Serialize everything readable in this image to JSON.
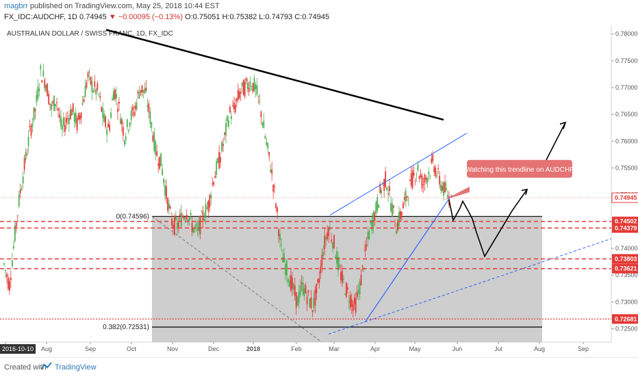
{
  "header": {
    "publisher": "magbrr",
    "published_text": "published on TradingView.com, May 25, 2018 10:44 EST",
    "symbol": "FX_IDC:AUDCHF, 1D",
    "last": "0.74945",
    "change": "−0.00095 (−0.13%)",
    "ohlc": "O:0.75051 H:0.75382 L:0.74793 C:0.74945"
  },
  "footer": {
    "created_with": "Created with",
    "brand": "TradingView"
  },
  "colors": {
    "up": "#4caf50",
    "down": "#e53935",
    "hline": "#e53935",
    "trend": "#000000",
    "blue": "#2962ff",
    "box": "#bdbdbd",
    "callout": "#e57373"
  },
  "chart_data": {
    "type": "candlestick",
    "title": "AUSTRALIAN DOLLAR / SWISS FRANC, 1D, FX_IDC",
    "y_ticks": [
      "0.78000",
      "0.77500",
      "0.77000",
      "0.76500",
      "0.76000",
      "0.75500",
      "0.75000",
      "0.74500",
      "0.74000",
      "0.73500",
      "0.73000",
      "0.72500"
    ],
    "ylim": [
      0.7225,
      0.7815
    ],
    "x_ticks": [
      "2016-10-10",
      "Aug",
      "Sep",
      "Oct",
      "Nov",
      "Dec",
      "2018",
      "Feb",
      "Mar",
      "Apr",
      "May",
      "Jun",
      "Jul",
      "Aug",
      "Sep"
    ],
    "price_labels": [
      {
        "label": "0.74945",
        "value": 0.74945
      },
      {
        "label": "0.74502",
        "value": 0.74502
      },
      {
        "label": "0.74379",
        "value": 0.74379
      },
      {
        "label": "0.73803",
        "value": 0.73803
      },
      {
        "label": "0.73621",
        "value": 0.73621
      },
      {
        "label": "0.72681",
        "value": 0.72681
      }
    ],
    "fib_labels": [
      {
        "label": "0(0.74596)",
        "value": 0.74596
      },
      {
        "label": "0.382(0.72531)",
        "value": 0.72531
      }
    ],
    "annotation": "Watching this trendline on AUDCHF",
    "price_path": [
      [
        0,
        0.737
      ],
      [
        1,
        0.733
      ],
      [
        2,
        0.742
      ],
      [
        3,
        0.75
      ],
      [
        4,
        0.756
      ],
      [
        5,
        0.762
      ],
      [
        6,
        0.766
      ],
      [
        7,
        0.773
      ],
      [
        8,
        0.771
      ],
      [
        9,
        0.766
      ],
      [
        10,
        0.768
      ],
      [
        11,
        0.762
      ],
      [
        12,
        0.764
      ],
      [
        13,
        0.766
      ],
      [
        14,
        0.763
      ],
      [
        15,
        0.767
      ],
      [
        16,
        0.772
      ],
      [
        17,
        0.77
      ],
      [
        18,
        0.769
      ],
      [
        19,
        0.764
      ],
      [
        20,
        0.762
      ],
      [
        21,
        0.77
      ],
      [
        22,
        0.766
      ],
      [
        23,
        0.761
      ],
      [
        24,
        0.764
      ],
      [
        25,
        0.766
      ],
      [
        26,
        0.77
      ],
      [
        27,
        0.769
      ],
      [
        28,
        0.764
      ],
      [
        29,
        0.758
      ],
      [
        30,
        0.756
      ],
      [
        31,
        0.75
      ],
      [
        32,
        0.745
      ],
      [
        33,
        0.744
      ],
      [
        34,
        0.746
      ],
      [
        35,
        0.747
      ],
      [
        36,
        0.744
      ],
      [
        37,
        0.743
      ],
      [
        38,
        0.746
      ],
      [
        39,
        0.748
      ],
      [
        40,
        0.753
      ],
      [
        41,
        0.756
      ],
      [
        42,
        0.76
      ],
      [
        43,
        0.765
      ],
      [
        44,
        0.766
      ],
      [
        45,
        0.769
      ],
      [
        46,
        0.77
      ],
      [
        47,
        0.771
      ],
      [
        48,
        0.77
      ],
      [
        49,
        0.766
      ],
      [
        50,
        0.76
      ],
      [
        51,
        0.755
      ],
      [
        52,
        0.748
      ],
      [
        53,
        0.739
      ],
      [
        54,
        0.736
      ],
      [
        55,
        0.733
      ],
      [
        56,
        0.73
      ],
      [
        57,
        0.733
      ],
      [
        58,
        0.731
      ],
      [
        59,
        0.729
      ],
      [
        60,
        0.733
      ],
      [
        61,
        0.74
      ],
      [
        62,
        0.744
      ],
      [
        63,
        0.741
      ],
      [
        64,
        0.736
      ],
      [
        65,
        0.733
      ],
      [
        66,
        0.731
      ],
      [
        67,
        0.729
      ],
      [
        68,
        0.733
      ],
      [
        69,
        0.739
      ],
      [
        70,
        0.744
      ],
      [
        71,
        0.747
      ],
      [
        72,
        0.751
      ],
      [
        73,
        0.753
      ],
      [
        74,
        0.748
      ],
      [
        75,
        0.744
      ],
      [
        76,
        0.747
      ],
      [
        77,
        0.75
      ],
      [
        78,
        0.753
      ],
      [
        79,
        0.755
      ],
      [
        80,
        0.752
      ],
      [
        81,
        0.754
      ],
      [
        82,
        0.756
      ],
      [
        83,
        0.753
      ],
      [
        84,
        0.751
      ],
      [
        85,
        0.7495
      ]
    ],
    "x_range": [
      0,
      85
    ]
  }
}
